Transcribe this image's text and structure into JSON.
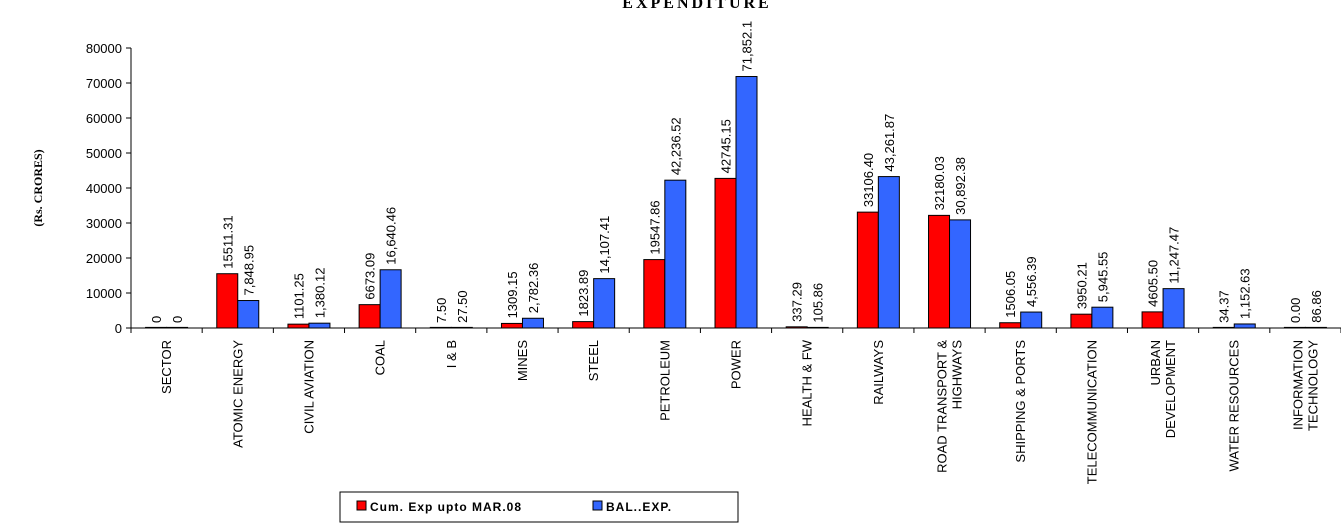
{
  "chart_data": {
    "type": "bar",
    "title": "EXPENDITURE",
    "ylabel": "(Rs. CRORES)",
    "xlabel": "",
    "ylim": [
      0,
      80000
    ],
    "yticks": [
      "0",
      "10000",
      "20000",
      "30000",
      "40000",
      "50000",
      "60000",
      "70000",
      "80000"
    ],
    "categories": [
      "SECTOR",
      "ATOMIC ENERGY",
      "CIVIL AVIATION",
      "COAL",
      "I & B",
      "MINES",
      "STEEL",
      "PETROLEUM",
      "POWER",
      "HEALTH & FW",
      "RAILWAYS",
      "ROAD TRANSPORT & HIGHWAYS",
      "SHIPPING & PORTS",
      "TELECOMMUNICATION",
      "URBAN DEVELOPMENT",
      "WATER RESOURCES",
      "INFORMATION TECHNOLOGY"
    ],
    "series": [
      {
        "name": "Cum. Exp upto MAR.08",
        "color": "#ff0000",
        "values": [
          0,
          15511.31,
          1101.25,
          6673.09,
          7.5,
          1309.15,
          1823.89,
          19547.86,
          42745.15,
          337.29,
          33106.4,
          32180.03,
          1506.05,
          3950.21,
          4605.5,
          34.37,
          0
        ],
        "labels": [
          "0",
          "15511.31",
          "1101.25",
          "6673.09",
          "7.50",
          "1309.15",
          "1823.89",
          "19547.86",
          "42745.15",
          "337.29",
          "33106.40",
          "32180.03",
          "1506.05",
          "3950.21",
          "4605.50",
          "34.37",
          "0.00"
        ]
      },
      {
        "name": "BAL..EXP.",
        "color": "#3366ff",
        "values": [
          0,
          7848.95,
          1380.12,
          16640.46,
          27.5,
          2782.36,
          14107.41,
          42236.52,
          71852.1,
          105.86,
          43261.87,
          30892.38,
          4556.39,
          5945.55,
          11247.47,
          1152.63,
          86.86
        ],
        "labels": [
          "0",
          "7,848.95",
          "1,380.12",
          "16,640.46",
          "27.50",
          "2,782.36",
          "14,107.41",
          "42,236.52",
          "71,852.1",
          "105.86",
          "43,261.87",
          "30,892.38",
          "4,556.39",
          "5,945.55",
          "11,247.47",
          "1,152.63",
          "86.86"
        ]
      }
    ],
    "legend": "bottom"
  }
}
